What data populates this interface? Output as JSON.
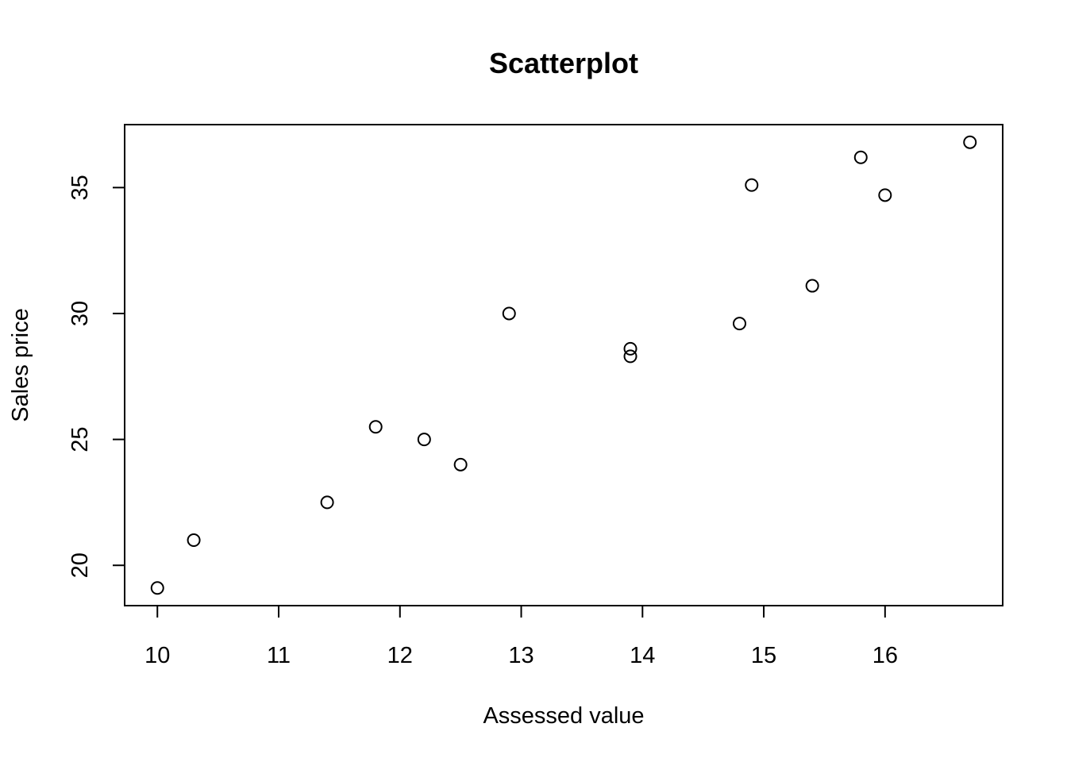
{
  "chart_data": {
    "type": "scatter",
    "title": "Scatterplot",
    "xlabel": "Assessed value",
    "ylabel": "Sales price",
    "xlim": [
      9.73,
      16.97
    ],
    "ylim": [
      18.4,
      37.5
    ],
    "xticks": [
      10,
      11,
      12,
      13,
      14,
      15,
      16
    ],
    "yticks": [
      20,
      25,
      30,
      35
    ],
    "grid": false,
    "legend": "none",
    "point_style": "open-circle",
    "colors": {
      "points": "#000000",
      "frame": "#000000",
      "background": "#ffffff"
    },
    "points": [
      {
        "x": 10.0,
        "y": 19.1
      },
      {
        "x": 10.3,
        "y": 21.0
      },
      {
        "x": 11.4,
        "y": 22.5
      },
      {
        "x": 11.8,
        "y": 25.5
      },
      {
        "x": 12.2,
        "y": 25.0
      },
      {
        "x": 12.5,
        "y": 24.0
      },
      {
        "x": 12.9,
        "y": 30.0
      },
      {
        "x": 13.9,
        "y": 28.6
      },
      {
        "x": 13.9,
        "y": 28.3
      },
      {
        "x": 14.8,
        "y": 29.6
      },
      {
        "x": 14.9,
        "y": 35.1
      },
      {
        "x": 15.4,
        "y": 31.1
      },
      {
        "x": 15.8,
        "y": 36.2
      },
      {
        "x": 16.0,
        "y": 34.7
      },
      {
        "x": 16.7,
        "y": 36.8
      }
    ]
  }
}
